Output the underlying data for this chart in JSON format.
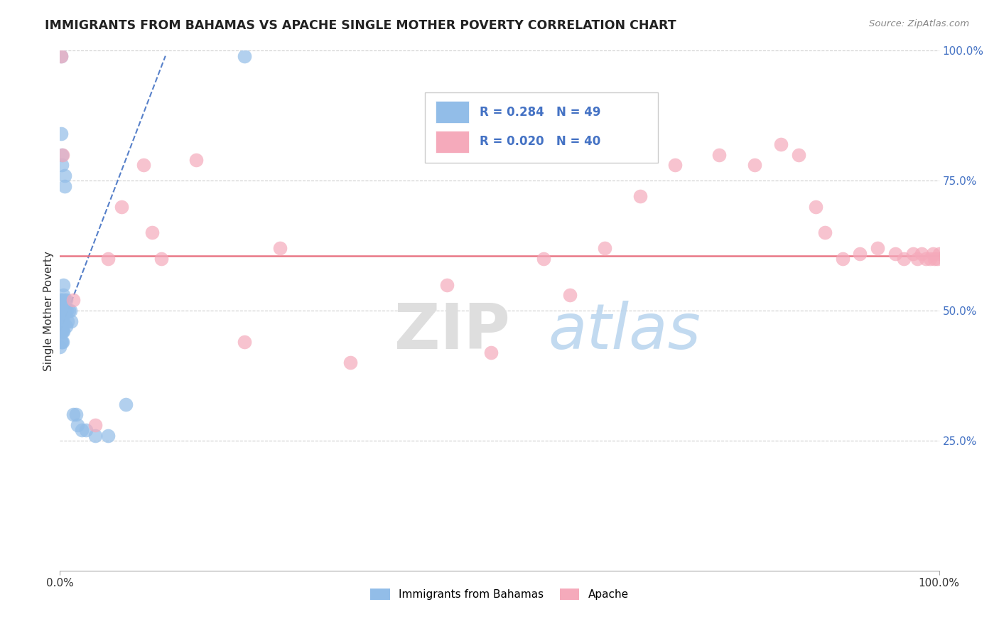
{
  "title": "IMMIGRANTS FROM BAHAMAS VS APACHE SINGLE MOTHER POVERTY CORRELATION CHART",
  "source": "Source: ZipAtlas.com",
  "ylabel": "Single Mother Poverty",
  "legend_label1": "Immigrants from Bahamas",
  "legend_label2": "Apache",
  "R1": "0.284",
  "N1": "49",
  "R2": "0.020",
  "N2": "40",
  "blue_color": "#92BDE8",
  "pink_color": "#F5AABB",
  "trend_blue_color": "#4472C4",
  "trend_pink_color": "#E87080",
  "blue_x": [
    0.0,
    0.0,
    0.001,
    0.001,
    0.001,
    0.001,
    0.001,
    0.001,
    0.001,
    0.001,
    0.002,
    0.002,
    0.002,
    0.002,
    0.002,
    0.002,
    0.002,
    0.002,
    0.003,
    0.003,
    0.003,
    0.003,
    0.003,
    0.004,
    0.004,
    0.004,
    0.004,
    0.004,
    0.005,
    0.005,
    0.005,
    0.005,
    0.006,
    0.007,
    0.007,
    0.008,
    0.009,
    0.01,
    0.012,
    0.013,
    0.015,
    0.018,
    0.02,
    0.025,
    0.03,
    0.04,
    0.055,
    0.075,
    0.21
  ],
  "blue_y": [
    0.46,
    0.43,
    0.99,
    0.84,
    0.52,
    0.5,
    0.48,
    0.47,
    0.46,
    0.44,
    0.8,
    0.78,
    0.52,
    0.5,
    0.49,
    0.48,
    0.46,
    0.44,
    0.5,
    0.49,
    0.47,
    0.46,
    0.44,
    0.55,
    0.53,
    0.5,
    0.48,
    0.46,
    0.76,
    0.74,
    0.52,
    0.5,
    0.5,
    0.52,
    0.47,
    0.5,
    0.48,
    0.5,
    0.5,
    0.48,
    0.3,
    0.3,
    0.28,
    0.27,
    0.27,
    0.26,
    0.26,
    0.32,
    0.99
  ],
  "pink_x": [
    0.001,
    0.003,
    0.015,
    0.04,
    0.055,
    0.07,
    0.095,
    0.105,
    0.115,
    0.155,
    0.21,
    0.25,
    0.33,
    0.44,
    0.49,
    0.55,
    0.58,
    0.62,
    0.66,
    0.7,
    0.75,
    0.79,
    0.82,
    0.84,
    0.86,
    0.87,
    0.89,
    0.91,
    0.93,
    0.95,
    0.96,
    0.97,
    0.975,
    0.98,
    0.985,
    0.99,
    0.993,
    0.995,
    0.998,
    1.0
  ],
  "pink_y": [
    0.99,
    0.8,
    0.52,
    0.28,
    0.6,
    0.7,
    0.78,
    0.65,
    0.6,
    0.79,
    0.44,
    0.62,
    0.4,
    0.55,
    0.42,
    0.6,
    0.53,
    0.62,
    0.72,
    0.78,
    0.8,
    0.78,
    0.82,
    0.8,
    0.7,
    0.65,
    0.6,
    0.61,
    0.62,
    0.61,
    0.6,
    0.61,
    0.6,
    0.61,
    0.6,
    0.6,
    0.61,
    0.6,
    0.6,
    0.61
  ],
  "blue_trend_x": [
    0.0,
    0.12
  ],
  "blue_trend_y": [
    0.46,
    0.99
  ],
  "pink_trend_y": 0.605,
  "xlim": [
    0.0,
    1.0
  ],
  "ylim": [
    0.0,
    1.0
  ],
  "ytick_positions": [
    0.25,
    0.5,
    0.75,
    1.0
  ],
  "ytick_labels": [
    "25.0%",
    "50.0%",
    "75.0%",
    "100.0%"
  ],
  "xtick_positions": [
    0.0,
    1.0
  ],
  "xtick_labels": [
    "0.0%",
    "100.0%"
  ]
}
